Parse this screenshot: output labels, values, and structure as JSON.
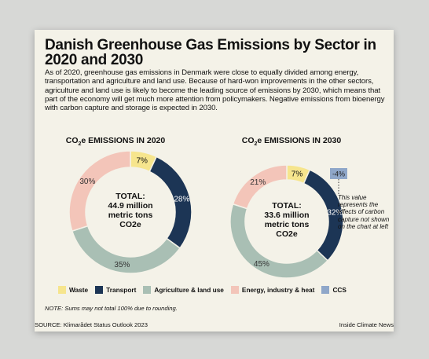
{
  "title": "Danish Greenhouse Gas Emissions by Sector in 2020 and 2030",
  "intro": "As of 2020, greenhouse gas emissions in Denmark were close to equally divided among energy, transportation and agriculture and land use. Because of hard-won improvements in the other sectors, agriculture and land use is likely to become the leading source of emissions by 2030, which means that part of the economy will get much more attention from policymakers. Negative emissions from bioenergy with carbon capture and storage is expected in 2030.",
  "colors": {
    "waste": "#f6e58d",
    "transport": "#1c3555",
    "agriculture": "#a9bfb4",
    "energy": "#f3c5b9",
    "ccs": "#8fa7c9"
  },
  "legend": [
    {
      "label": "Waste",
      "color": "#f6e58d"
    },
    {
      "label": "Transport",
      "color": "#1c3555"
    },
    {
      "label": "Agriculture & land use",
      "color": "#a9bfb4"
    },
    {
      "label": "Energy, industry & heat",
      "color": "#f3c5b9"
    },
    {
      "label": "CCS",
      "color": "#8fa7c9"
    }
  ],
  "chart_data": [
    {
      "type": "pie",
      "title": "CO2e EMISSIONS IN 2020",
      "center_label": [
        "TOTAL:",
        "44.9 million",
        "metric tons",
        "CO2e"
      ],
      "categories": [
        "Waste",
        "Transport",
        "Agriculture & land use",
        "Energy, industry & heat"
      ],
      "values": [
        7,
        28,
        35,
        30
      ],
      "labels": [
        "7%",
        "28%",
        "35%",
        "30%"
      ]
    },
    {
      "type": "pie",
      "title": "CO2e EMISSIONS IN 2030",
      "center_label": [
        "TOTAL:",
        "33.6 million",
        "metric tons",
        "CO2e"
      ],
      "categories": [
        "Waste",
        "Transport",
        "Agriculture & land use",
        "Energy, industry & heat"
      ],
      "values": [
        7,
        32,
        45,
        21
      ],
      "labels": [
        "7%",
        "32%",
        "45%",
        "21%"
      ],
      "ccs": {
        "value": -4,
        "label": "-4%"
      }
    }
  ],
  "ccs_note": "This value represents the effects of carbon capture not shown on the chart at left",
  "note": "NOTE: Sums may not total 100% due to rounding.",
  "source": "SOURCE: Klimarådet Status Outlook 2023",
  "credit": "Inside Climate News"
}
